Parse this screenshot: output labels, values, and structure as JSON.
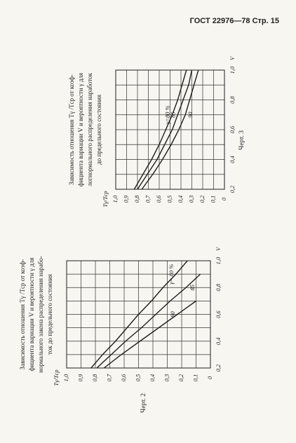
{
  "header": "ГОСТ 22976—78 Стр. 15",
  "chart_data": [
    {
      "type": "line",
      "title": [
        "Зависимость отношения Tγ /Tср от коэф-",
        "фициента вариации V и вероятности γ для",
        "нормального закона распределения нарабо-",
        "ток до предельного состояния"
      ],
      "caption": "Черт. 2",
      "xlabel": "V",
      "ylabel": "Tγ/Tср",
      "x": [
        0.2,
        0.3,
        0.4,
        0.5,
        0.6,
        0.7,
        0.8,
        0.9,
        1.0
      ],
      "xlim": [
        0.2,
        1.0
      ],
      "ylim": [
        0,
        1.0
      ],
      "xticks": [
        {
          "value": 0.2,
          "label": "0,2"
        },
        {
          "value": 0.4,
          "label": "0,4"
        },
        {
          "value": 0.6,
          "label": "0,6"
        },
        {
          "value": 0.8,
          "label": "0,8"
        },
        {
          "value": 1.0,
          "label": "1,0"
        }
      ],
      "xgrid": [
        0.3,
        0.5,
        0.7,
        0.9
      ],
      "yticks": [
        0,
        {
          "value": 0.1,
          "label": "0,1"
        },
        {
          "value": 0.2,
          "label": "0,2"
        },
        {
          "value": 0.3,
          "label": "0,3"
        },
        {
          "value": 0.4,
          "label": "0,4"
        },
        {
          "value": 0.5,
          "label": "0,5"
        },
        {
          "value": 0.6,
          "label": "0,6"
        },
        {
          "value": 0.7,
          "label": "0,7"
        },
        {
          "value": 0.8,
          "label": "0,8"
        },
        {
          "value": 0.9,
          "label": "0,9"
        },
        {
          "value": 1.0,
          "label": "1,0"
        }
      ],
      "grid": true,
      "series": [
        {
          "name": "γ= 80 %",
          "color": "#1e1e1e",
          "values": [
            0.83,
            0.75,
            0.66,
            0.58,
            0.5,
            0.41,
            0.33,
            0.24,
            0.16
          ]
        },
        {
          "name": "85",
          "color": "#1e1e1e",
          "values": [
            0.79,
            0.69,
            0.59,
            0.48,
            0.38,
            0.28,
            0.17,
            0.07,
            null
          ]
        },
        {
          "name": "90",
          "color": "#1e1e1e",
          "values": [
            0.74,
            0.62,
            0.49,
            0.36,
            0.23,
            0.1,
            null,
            null,
            null
          ]
        }
      ]
    },
    {
      "type": "line",
      "title": [
        "Зависимость отношения Tγ /Tср от коэф-",
        "фициента вариации V и вероятности γ для",
        "логнормального распределения наработок",
        "до предельного состояния"
      ],
      "caption": "Черт. 3",
      "xlabel": "V",
      "ylabel": "Tγ/Tср",
      "x": [
        0.2,
        0.3,
        0.4,
        0.5,
        0.6,
        0.7,
        0.8,
        0.9,
        1.0
      ],
      "xlim": [
        0.2,
        1.0
      ],
      "ylim": [
        0,
        1.0
      ],
      "xticks": [
        {
          "value": 0.2,
          "label": "0,2"
        },
        {
          "value": 0.4,
          "label": "0,4"
        },
        {
          "value": 0.6,
          "label": "0,6"
        },
        {
          "value": 0.8,
          "label": "0,8"
        },
        {
          "value": 1.0,
          "label": "1,0"
        }
      ],
      "xgrid": [
        0.3,
        0.5,
        0.7,
        0.9
      ],
      "yticks": [
        0,
        {
          "value": 0.1,
          "label": "0,1"
        },
        {
          "value": 0.2,
          "label": "0,2"
        },
        {
          "value": 0.3,
          "label": "0,3"
        },
        {
          "value": 0.4,
          "label": "0,4"
        },
        {
          "value": 0.5,
          "label": "0,5"
        },
        {
          "value": 0.6,
          "label": "0,6"
        },
        {
          "value": 0.7,
          "label": "0,7"
        },
        {
          "value": 0.8,
          "label": "0,8"
        },
        {
          "value": 0.9,
          "label": "0,9"
        },
        {
          "value": 1.0,
          "label": "1,0"
        }
      ],
      "grid": true,
      "series": [
        {
          "name": "γ=80 %",
          "color": "#1e1e1e",
          "values": [
            0.83,
            0.75,
            0.67,
            0.6,
            0.54,
            0.48,
            0.43,
            0.39,
            0.35
          ]
        },
        {
          "name": "85",
          "color": "#1e1e1e",
          "values": [
            0.8,
            0.71,
            0.62,
            0.55,
            0.48,
            0.43,
            0.38,
            0.33,
            0.3
          ]
        },
        {
          "name": "90",
          "color": "#1e1e1e",
          "values": [
            0.76,
            0.66,
            0.57,
            0.49,
            0.42,
            0.36,
            0.32,
            0.28,
            0.24
          ]
        }
      ]
    }
  ]
}
